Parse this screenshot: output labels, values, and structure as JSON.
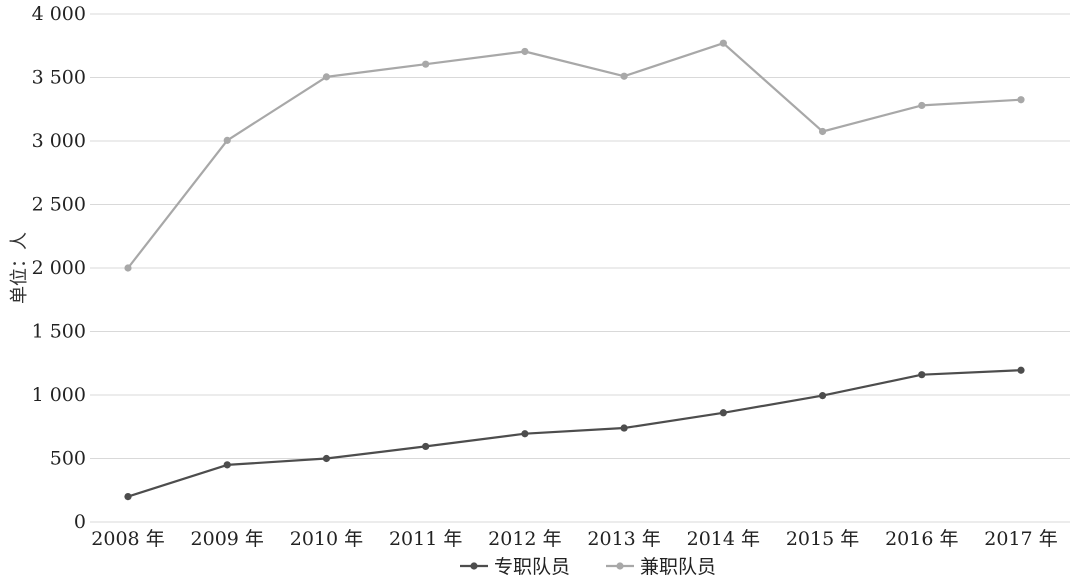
{
  "chart_data": {
    "type": "line",
    "title": "",
    "xlabel": "",
    "ylabel": "单位：人",
    "categories": [
      "2008 年",
      "2009 年",
      "2010 年",
      "2011 年",
      "2012 年",
      "2013 年",
      "2014 年",
      "2015 年",
      "2016 年",
      "2017 年"
    ],
    "ylim": [
      0,
      4000
    ],
    "yticks": [
      0,
      500,
      1000,
      1500,
      2000,
      2500,
      3000,
      3500,
      4000
    ],
    "ytick_labels": [
      "0",
      "500",
      "1 000",
      "1 500",
      "2 000",
      "2 500",
      "3 000",
      "3 500",
      "4 000"
    ],
    "grid": true,
    "legend_position": "bottom",
    "series": [
      {
        "name": "专职队员",
        "color": "#4d4d4d",
        "values": [
          200,
          450,
          500,
          595,
          695,
          740,
          860,
          995,
          1160,
          1195
        ]
      },
      {
        "name": "兼职队员",
        "color": "#a8a8a8",
        "values": [
          2000,
          3005,
          3505,
          3605,
          3705,
          3510,
          3770,
          3075,
          3280,
          3325
        ]
      }
    ]
  }
}
